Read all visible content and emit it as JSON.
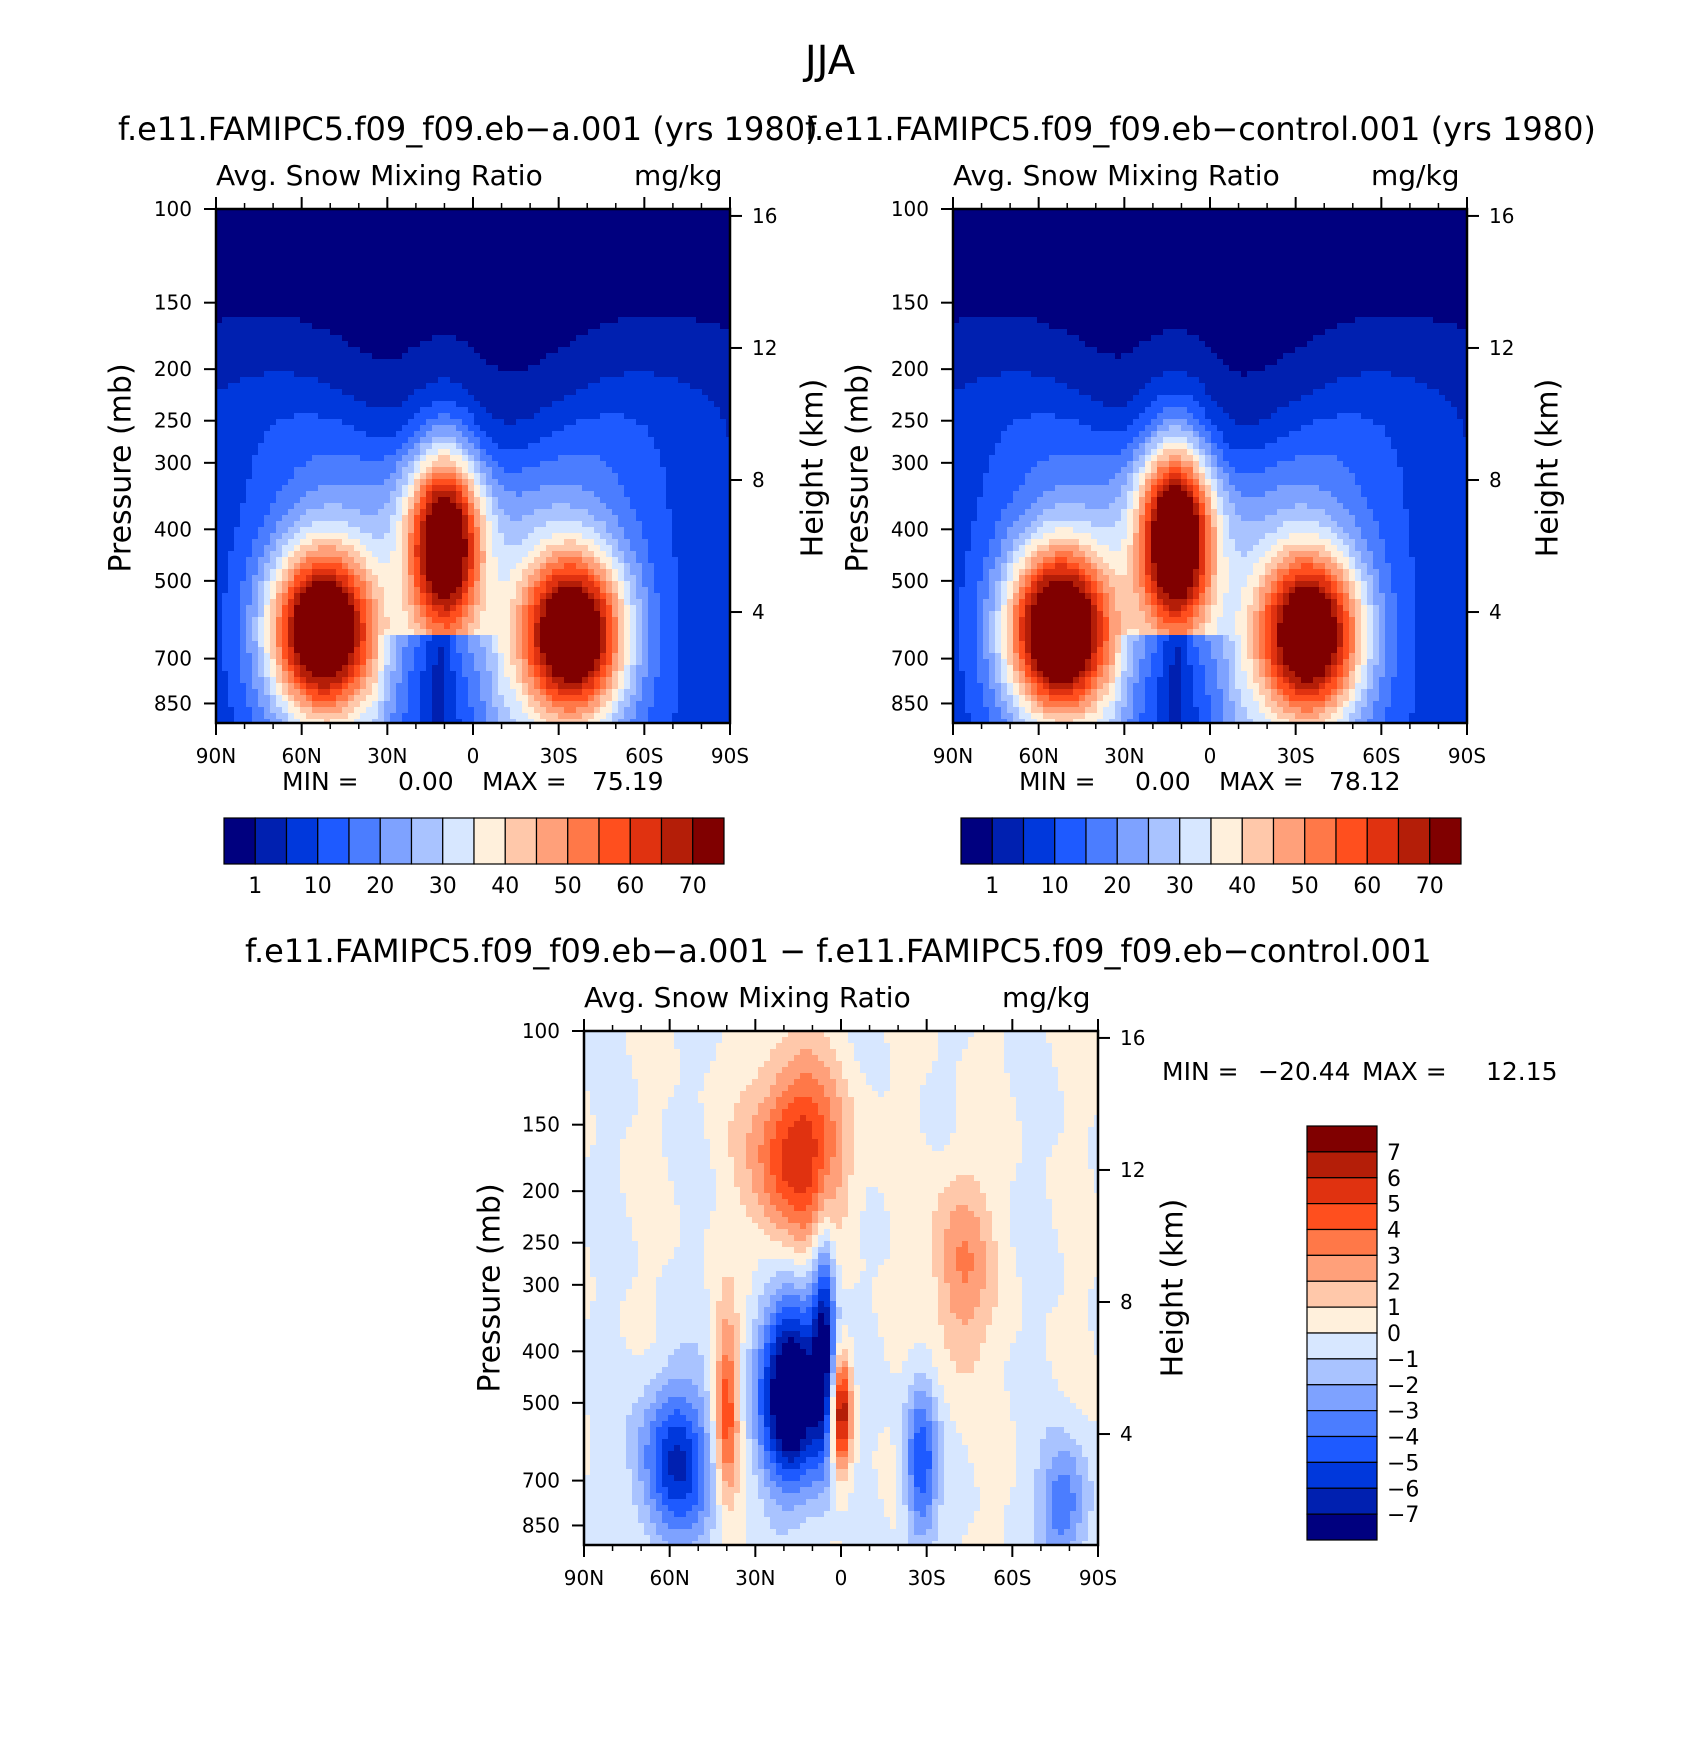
{
  "figure_title": "JJA",
  "colors": {
    "abs_scale": [
      "#00007f",
      "#0020b0",
      "#0038dc",
      "#1e5aff",
      "#4b7dff",
      "#7ea2ff",
      "#a9c3ff",
      "#d7e7ff",
      "#fff0dc",
      "#ffc8aa",
      "#ffa07a",
      "#ff7848",
      "#ff4f1e",
      "#e03210",
      "#b41e08",
      "#800000"
    ],
    "diff_scale": [
      "#800000",
      "#b41e08",
      "#e03210",
      "#ff4f1e",
      "#ff7848",
      "#ffa07a",
      "#ffc8aa",
      "#fff0dc",
      "#d7e7ff",
      "#a9c3ff",
      "#7ea2ff",
      "#4b7dff",
      "#1e5aff",
      "#0038dc",
      "#0020b0",
      "#00007f"
    ]
  },
  "chart_data": [
    {
      "type": "heatmap",
      "title": "f.e11.FAMIPC5.f09_f09.eb−a.001 (yrs 1980)",
      "left_subtitle": "Avg. Snow Mixing Ratio",
      "right_subtitle": "mg/kg",
      "ylabel": "Pressure (mb)",
      "ylabel_right": "Height (km)",
      "x_ticks": [
        "90N",
        "60N",
        "30N",
        "0",
        "30S",
        "60S",
        "90S"
      ],
      "y_ticks": [
        "100",
        "150",
        "200",
        "250",
        "300",
        "400",
        "500",
        "700",
        "850"
      ],
      "y_ticks_right": [
        "16",
        "12",
        "8",
        "4"
      ],
      "min_label": "MIN =",
      "min_value": "0.00",
      "max_label": "MAX =",
      "max_value": "75.19",
      "colorbar_labels": [
        "1",
        "10",
        "20",
        "30",
        "40",
        "50",
        "60",
        "70"
      ],
      "features": [
        {
          "lat": 53,
          "p": 620,
          "peak": 75
        },
        {
          "lat": 10,
          "p": 420,
          "peak": 66
        },
        {
          "lat": -35,
          "p": 630,
          "peak": 71
        }
      ]
    },
    {
      "type": "heatmap",
      "title": "f.e11.FAMIPC5.f09_f09.eb−control.001 (yrs 1980)",
      "left_subtitle": "Avg. Snow Mixing Ratio",
      "right_subtitle": "mg/kg",
      "ylabel": "Pressure (mb)",
      "ylabel_right": "Height (km)",
      "x_ticks": [
        "90N",
        "60N",
        "30N",
        "0",
        "30S",
        "60S",
        "90S"
      ],
      "y_ticks": [
        "100",
        "150",
        "200",
        "250",
        "300",
        "400",
        "500",
        "700",
        "850"
      ],
      "y_ticks_right": [
        "16",
        "12",
        "8",
        "4"
      ],
      "min_label": "MIN =",
      "min_value": "0.00",
      "max_label": "MAX =",
      "max_value": "78.12",
      "colorbar_labels": [
        "1",
        "10",
        "20",
        "30",
        "40",
        "50",
        "60",
        "70"
      ],
      "features": [
        {
          "lat": 53,
          "p": 620,
          "peak": 78
        },
        {
          "lat": 12,
          "p": 410,
          "peak": 72
        },
        {
          "lat": -35,
          "p": 630,
          "peak": 70
        }
      ]
    },
    {
      "type": "heatmap",
      "title": "f.e11.FAMIPC5.f09_f09.eb−a.001 − f.e11.FAMIPC5.f09_f09.eb−control.001",
      "left_subtitle": "Avg. Snow Mixing Ratio",
      "right_subtitle": "mg/kg",
      "ylabel": "Pressure (mb)",
      "ylabel_right": "Height (km)",
      "x_ticks": [
        "90N",
        "60N",
        "30N",
        "0",
        "30S",
        "60S",
        "90S"
      ],
      "y_ticks": [
        "100",
        "150",
        "200",
        "250",
        "300",
        "400",
        "500",
        "700",
        "850"
      ],
      "y_ticks_right": [
        "16",
        "12",
        "8",
        "4"
      ],
      "min_label": "MIN =",
      "min_value": "−20.44",
      "max_label": "MAX =",
      "max_value": "12.15",
      "colorbar_labels": [
        "7",
        "6",
        "5",
        "4",
        "3",
        "2",
        "1",
        "0",
        "−1",
        "−2",
        "−3",
        "−4",
        "−5",
        "−6",
        "−7"
      ]
    }
  ]
}
